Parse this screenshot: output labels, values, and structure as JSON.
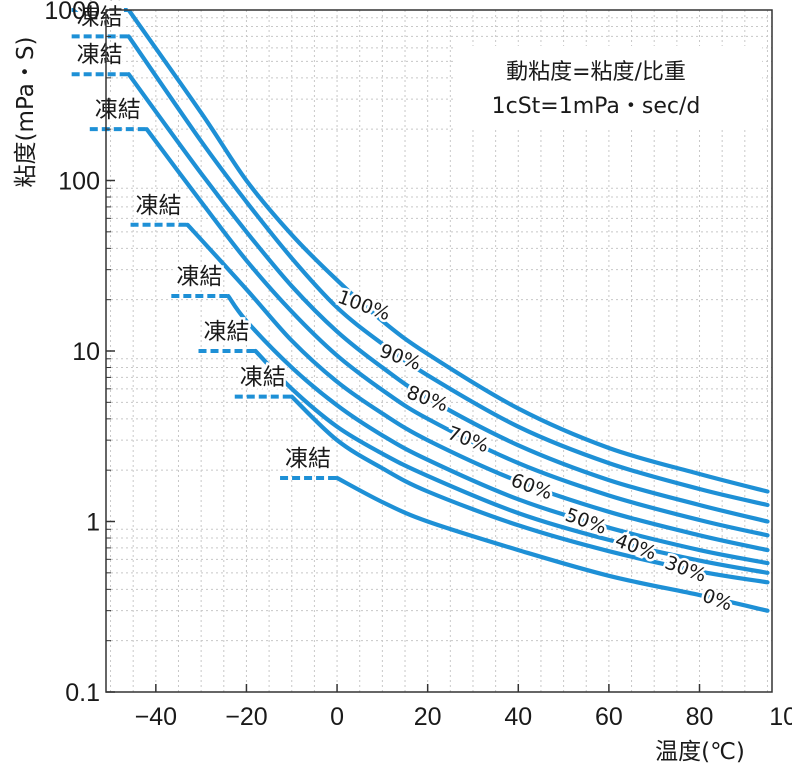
{
  "chart_data": {
    "type": "line",
    "xlabel": "温度(℃)",
    "ylabel": "粘度(mPa・S)",
    "note_lines": [
      "動粘度=粘度/比重",
      "1cSt=1mPa・sec/d"
    ],
    "x_scale": "linear",
    "y_scale": "log",
    "xlim": [
      -51,
      96
    ],
    "ylim": [
      0.1,
      1000
    ],
    "x_ticks": [
      -40,
      -20,
      0,
      20,
      40,
      60,
      80,
      100
    ],
    "x_tick_labels": [
      "−40",
      "−20",
      "0",
      "20",
      "40",
      "60",
      "80",
      "100"
    ],
    "y_ticks": [
      1000,
      100,
      10,
      1,
      0.1
    ],
    "y_tick_labels": [
      "1000",
      "100",
      "10",
      "1",
      "0.1"
    ],
    "grid": "dashed minor grid",
    "line_color": "#1e90d6",
    "freeze_label_text": "凍結",
    "series": [
      {
        "name": "100%",
        "freeze_temp": -46,
        "points": [
          [
            -46,
            1000
          ],
          [
            -30,
            250
          ],
          [
            -20,
            100
          ],
          [
            -10,
            48
          ],
          [
            0,
            26
          ],
          [
            10,
            15
          ],
          [
            20,
            9.6
          ],
          [
            40,
            4.6
          ],
          [
            60,
            2.7
          ],
          [
            80,
            1.9
          ],
          [
            95,
            1.5
          ]
        ]
      },
      {
        "name": "90%",
        "freeze_temp": -46,
        "points": [
          [
            -46,
            700
          ],
          [
            -30,
            170
          ],
          [
            -20,
            75
          ],
          [
            -10,
            35
          ],
          [
            0,
            18
          ],
          [
            10,
            11
          ],
          [
            20,
            7.2
          ],
          [
            40,
            3.6
          ],
          [
            60,
            2.2
          ],
          [
            80,
            1.55
          ],
          [
            95,
            1.25
          ]
        ]
      },
      {
        "name": "80%",
        "freeze_temp": -46,
        "points": [
          [
            -46,
            420
          ],
          [
            -30,
            110
          ],
          [
            -20,
            50
          ],
          [
            -10,
            24
          ],
          [
            0,
            13
          ],
          [
            10,
            8
          ],
          [
            20,
            5.3
          ],
          [
            40,
            2.8
          ],
          [
            60,
            1.75
          ],
          [
            80,
            1.25
          ],
          [
            95,
            1.0
          ]
        ]
      },
      {
        "name": "70%",
        "freeze_temp": -42,
        "points": [
          [
            -42,
            200
          ],
          [
            -30,
            75
          ],
          [
            -20,
            34
          ],
          [
            -10,
            17
          ],
          [
            0,
            9.4
          ],
          [
            10,
            5.9
          ],
          [
            20,
            4.0
          ],
          [
            40,
            2.2
          ],
          [
            60,
            1.42
          ],
          [
            80,
            1.02
          ],
          [
            95,
            0.83
          ]
        ]
      },
      {
        "name": "60%",
        "freeze_temp": -33,
        "points": [
          [
            -33,
            55
          ],
          [
            -20,
            23
          ],
          [
            -10,
            11.5
          ],
          [
            0,
            6.6
          ],
          [
            10,
            4.3
          ],
          [
            20,
            3.0
          ],
          [
            40,
            1.72
          ],
          [
            60,
            1.14
          ],
          [
            80,
            0.83
          ],
          [
            95,
            0.68
          ]
        ]
      },
      {
        "name": "50%",
        "freeze_temp": -24,
        "points": [
          [
            -24,
            21
          ],
          [
            -20,
            15
          ],
          [
            -10,
            8.0
          ],
          [
            0,
            4.8
          ],
          [
            10,
            3.2
          ],
          [
            20,
            2.3
          ],
          [
            40,
            1.35
          ],
          [
            60,
            0.92
          ],
          [
            80,
            0.68
          ],
          [
            95,
            0.57
          ]
        ]
      },
      {
        "name": "40%",
        "freeze_temp": -18,
        "points": [
          [
            -18,
            10
          ],
          [
            -10,
            6.0
          ],
          [
            0,
            3.6
          ],
          [
            10,
            2.5
          ],
          [
            20,
            1.85
          ],
          [
            40,
            1.12
          ],
          [
            60,
            0.78
          ],
          [
            80,
            0.59
          ],
          [
            95,
            0.5
          ]
        ]
      },
      {
        "name": "30%",
        "freeze_temp": -10,
        "points": [
          [
            -10,
            5.4
          ],
          [
            0,
            3.0
          ],
          [
            10,
            2.05
          ],
          [
            20,
            1.5
          ],
          [
            40,
            0.95
          ],
          [
            60,
            0.67
          ],
          [
            80,
            0.51
          ],
          [
            95,
            0.44
          ]
        ]
      },
      {
        "name": "0%",
        "freeze_temp": 0,
        "points": [
          [
            0,
            1.8
          ],
          [
            10,
            1.3
          ],
          [
            20,
            1.0
          ],
          [
            40,
            0.68
          ],
          [
            60,
            0.48
          ],
          [
            80,
            0.37
          ],
          [
            95,
            0.3
          ]
        ]
      }
    ]
  }
}
